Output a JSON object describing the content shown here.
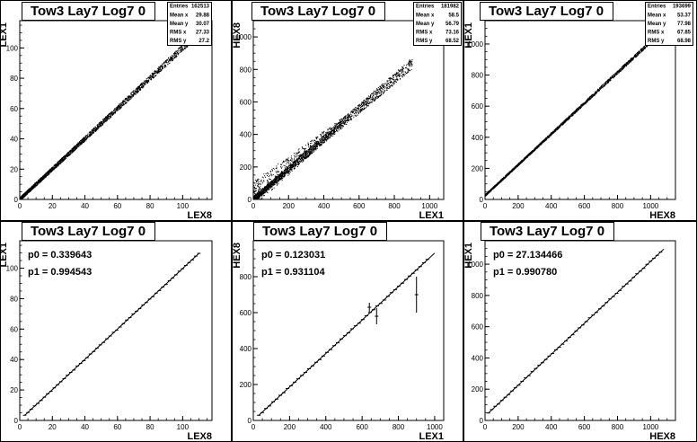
{
  "chart_data": [
    {
      "type": "scatter",
      "title": "Tow3 Lay7 Log7 0",
      "xlabel": "LEX8",
      "ylabel": "LEX1",
      "xlim": [
        0,
        118
      ],
      "ylim": [
        0,
        118
      ],
      "xticks": [
        0,
        20,
        40,
        60,
        80,
        100
      ],
      "yticks": [
        0,
        20,
        40,
        60,
        80,
        100
      ],
      "stats": [
        {
          "label": "Entries",
          "value": "162513"
        },
        {
          "label": "Mean x",
          "value": "29.88"
        },
        {
          "label": "Mean y",
          "value": "30.07"
        },
        {
          "label": "RMS x",
          "value": "27.33"
        },
        {
          "label": "RMS y",
          "value": "27.2"
        }
      ],
      "relation": {
        "slope": 1.0,
        "intercept": 0.3,
        "x_max": 110,
        "spread": 1.2,
        "outlier_fraction": 0.0
      }
    },
    {
      "type": "scatter",
      "title": "Tow3 Lay7 Log7 0",
      "xlabel": "LEX1",
      "ylabel": "HEX8",
      "xlim": [
        0,
        1080
      ],
      "ylim": [
        0,
        1100
      ],
      "xticks": [
        0,
        200,
        400,
        600,
        800,
        1000
      ],
      "yticks": [
        0,
        200,
        400,
        600,
        800,
        1000
      ],
      "stats": [
        {
          "label": "Entries",
          "value": "181982"
        },
        {
          "label": "Mean x",
          "value": "58.5"
        },
        {
          "label": "Mean y",
          "value": "56.79"
        },
        {
          "label": "RMS x",
          "value": "73.16"
        },
        {
          "label": "RMS y",
          "value": "68.52"
        }
      ],
      "relation": {
        "slope": 0.93,
        "intercept": 0.1,
        "x_max": 900,
        "spread": 18,
        "outlier_fraction": 0.22
      }
    },
    {
      "type": "scatter",
      "title": "Tow3 Lay7 Log7 0",
      "xlabel": "HEX8",
      "ylabel": "HEX1",
      "xlim": [
        0,
        1150
      ],
      "ylim": [
        0,
        1150
      ],
      "xticks": [
        0,
        200,
        400,
        600,
        800,
        1000
      ],
      "yticks": [
        0,
        200,
        400,
        600,
        800,
        1000
      ],
      "stats": [
        {
          "label": "Entries",
          "value": "193699"
        },
        {
          "label": "Mean x",
          "value": "53.37"
        },
        {
          "label": "Mean y",
          "value": "77.98"
        },
        {
          "label": "RMS x",
          "value": "67.85"
        },
        {
          "label": "RMS y",
          "value": "68.98"
        }
      ],
      "relation": {
        "slope": 0.99,
        "intercept": 27,
        "x_max": 1000,
        "spread": 6,
        "outlier_fraction": 0.0
      }
    },
    {
      "type": "line",
      "title": "Tow3 Lay7 Log7 0",
      "xlabel": "LEX8",
      "ylabel": "LEX1",
      "xlim": [
        0,
        118
      ],
      "ylim": [
        0,
        118
      ],
      "xticks": [
        0,
        20,
        40,
        60,
        80,
        100
      ],
      "yticks": [
        0,
        20,
        40,
        60,
        80,
        100
      ],
      "fit": {
        "p0_label": "p0 = 0.339643",
        "p1_label": "p1 = 0.994543",
        "p0": 0.339643,
        "p1": 0.994543,
        "x_range": [
          3,
          110
        ]
      },
      "profile": {
        "x_min": 3,
        "x_max": 110,
        "n": 54
      },
      "outliers": []
    },
    {
      "type": "line",
      "title": "Tow3 Lay7 Log7 0",
      "xlabel": "LEX1",
      "ylabel": "HEX8",
      "xlim": [
        0,
        1050
      ],
      "ylim": [
        0,
        1000
      ],
      "xticks": [
        0,
        200,
        400,
        600,
        800,
        1000
      ],
      "yticks": [
        0,
        200,
        400,
        600,
        800
      ],
      "fit": {
        "p0_label": "p0 = 0.123031",
        "p1_label": "p1 = 0.931104",
        "p0": 0.123031,
        "p1": 0.931104,
        "x_range": [
          30,
          1000
        ]
      },
      "profile": {
        "x_min": 30,
        "x_max": 960,
        "n": 48
      },
      "outliers": [
        {
          "x": 640,
          "y": 630,
          "err": 25
        },
        {
          "x": 680,
          "y": 580,
          "err": 45
        },
        {
          "x": 900,
          "y": 700,
          "err": 100
        }
      ]
    },
    {
      "type": "line",
      "title": "Tow3 Lay7 Log7 0",
      "xlabel": "HEX8",
      "ylabel": "HEX1",
      "xlim": [
        0,
        1150
      ],
      "ylim": [
        0,
        1150
      ],
      "xticks": [
        0,
        200,
        400,
        600,
        800,
        1000
      ],
      "yticks": [
        0,
        200,
        400,
        600,
        800,
        1000
      ],
      "fit": {
        "p0_label": "p0 = 27.134466",
        "p1_label": "p1 = 0.990780",
        "p0": 27.134466,
        "p1": 0.99078,
        "x_range": [
          20,
          1080
        ]
      },
      "profile": {
        "x_min": 20,
        "x_max": 1060,
        "n": 52
      },
      "outliers": []
    }
  ]
}
